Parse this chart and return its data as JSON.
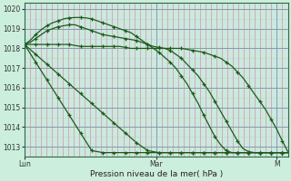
{
  "title": "",
  "xlabel": "Pression niveau de la mer( hPa )",
  "bg_color": "#cceedd",
  "plot_bg_color": "#cce8e0",
  "grid_color_major": "#9ab8b0",
  "grid_color_minor": "#cc9999",
  "line_color": "#1a5c1a",
  "marker": "+",
  "ylim": [
    1012.5,
    1020.3
  ],
  "yticks": [
    1013,
    1014,
    1015,
    1016,
    1017,
    1018,
    1019,
    1020
  ],
  "xtick_labels": [
    "Lun",
    "Mar",
    "M"
  ],
  "xtick_positions": [
    0,
    24,
    46
  ],
  "total_hours": 48,
  "series": [
    [
      1018.2,
      1018.2,
      1018.2,
      1018.2,
      1018.2,
      1018.2,
      1018.2,
      1018.2,
      1018.2,
      1018.15,
      1018.1,
      1018.1,
      1018.1,
      1018.1,
      1018.1,
      1018.1,
      1018.1,
      1018.1,
      1018.05,
      1018.0,
      1018.0,
      1018.0,
      1018.0,
      1018.0,
      1018.0,
      1018.0,
      1018.0,
      1018.0,
      1018.0,
      1017.95,
      1017.9,
      1017.85,
      1017.8,
      1017.7,
      1017.6,
      1017.5,
      1017.3,
      1017.1,
      1016.8,
      1016.5,
      1016.1,
      1015.7,
      1015.3,
      1014.9,
      1014.4,
      1013.9,
      1013.3,
      1012.75
    ],
    [
      1018.2,
      1018.3,
      1018.5,
      1018.7,
      1018.9,
      1019.0,
      1019.1,
      1019.15,
      1019.2,
      1019.2,
      1019.1,
      1019.0,
      1018.9,
      1018.8,
      1018.7,
      1018.65,
      1018.6,
      1018.55,
      1018.5,
      1018.45,
      1018.4,
      1018.3,
      1018.2,
      1018.1,
      1018.05,
      1018.0,
      1017.9,
      1017.7,
      1017.5,
      1017.2,
      1016.9,
      1016.6,
      1016.2,
      1015.8,
      1015.3,
      1014.8,
      1014.3,
      1013.8,
      1013.3,
      1012.9,
      1012.75,
      1012.7,
      1012.7,
      1012.7,
      1012.7,
      1012.7,
      1012.7,
      1012.7
    ],
    [
      1018.2,
      1018.4,
      1018.7,
      1018.95,
      1019.15,
      1019.3,
      1019.4,
      1019.5,
      1019.55,
      1019.57,
      1019.57,
      1019.55,
      1019.5,
      1019.4,
      1019.3,
      1019.2,
      1019.1,
      1019.0,
      1018.9,
      1018.8,
      1018.6,
      1018.4,
      1018.2,
      1018.0,
      1017.8,
      1017.55,
      1017.3,
      1017.0,
      1016.6,
      1016.2,
      1015.7,
      1015.2,
      1014.6,
      1014.05,
      1013.5,
      1013.1,
      1012.8,
      1012.7,
      1012.7,
      1012.7,
      1012.7,
      1012.7,
      1012.7,
      1012.7,
      1012.7,
      1012.7,
      1012.7,
      1012.7
    ],
    [
      1018.2,
      1017.95,
      1017.7,
      1017.45,
      1017.2,
      1016.95,
      1016.7,
      1016.45,
      1016.2,
      1015.95,
      1015.7,
      1015.45,
      1015.2,
      1014.95,
      1014.7,
      1014.45,
      1014.2,
      1013.95,
      1013.7,
      1013.45,
      1013.2,
      1013.0,
      1012.8,
      1012.75,
      1012.7,
      1012.7,
      1012.7,
      1012.7,
      1012.7,
      1012.7,
      1012.7,
      1012.7,
      1012.7,
      1012.7,
      1012.7,
      1012.7,
      1012.7,
      1012.7,
      1012.7,
      1012.7,
      1012.7,
      1012.7,
      1012.7,
      1012.7,
      1012.7,
      1012.7,
      1012.7,
      1012.7
    ],
    [
      1018.2,
      1017.75,
      1017.3,
      1016.85,
      1016.4,
      1015.95,
      1015.5,
      1015.05,
      1014.6,
      1014.15,
      1013.7,
      1013.25,
      1012.8,
      1012.75,
      1012.7,
      1012.7,
      1012.7,
      1012.7,
      1012.7,
      1012.7,
      1012.7,
      1012.7,
      1012.7,
      1012.7,
      1012.7,
      1012.7,
      1012.7,
      1012.7,
      1012.7,
      1012.7,
      1012.7,
      1012.7,
      1012.7,
      1012.7,
      1012.7,
      1012.7,
      1012.7,
      1012.7,
      1012.7,
      1012.7,
      1012.7,
      1012.7,
      1012.7,
      1012.7,
      1012.7,
      1012.7,
      1012.7,
      1012.7
    ]
  ]
}
